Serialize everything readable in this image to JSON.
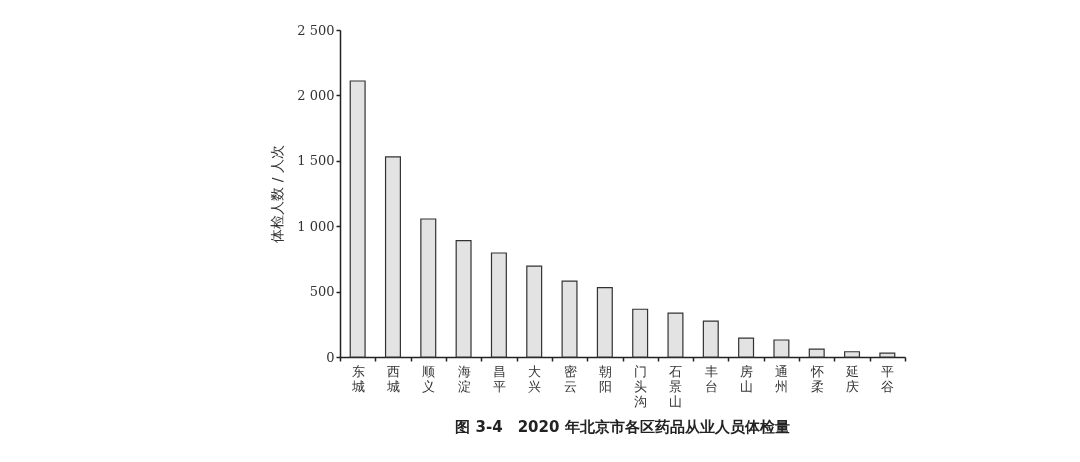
{
  "chart_data": {
    "type": "bar",
    "title": "图 3-4　2020 年北京市各区药品从业人员体检量",
    "ylabel": "体检人数 / 人次",
    "categories": [
      "东城",
      "西城",
      "顺义",
      "海淀",
      "昌平",
      "大兴",
      "密云",
      "朝阳",
      "门头沟",
      "石景山",
      "丰台",
      "房山",
      "通州",
      "怀柔",
      "延庆",
      "平谷"
    ],
    "values": [
      2110,
      1530,
      1055,
      890,
      795,
      695,
      580,
      530,
      365,
      335,
      275,
      145,
      130,
      60,
      40,
      30
    ],
    "color": "#e3e3e3",
    "ylim": [
      0,
      2500
    ],
    "yticks": [
      0,
      500,
      {
        "value": 1000,
        "label": "1 000"
      },
      {
        "value": 1500,
        "label": "1 500"
      },
      {
        "value": 2000,
        "label": "2 000"
      },
      {
        "value": 2500,
        "label": "2 500"
      }
    ],
    "grid": false
  }
}
